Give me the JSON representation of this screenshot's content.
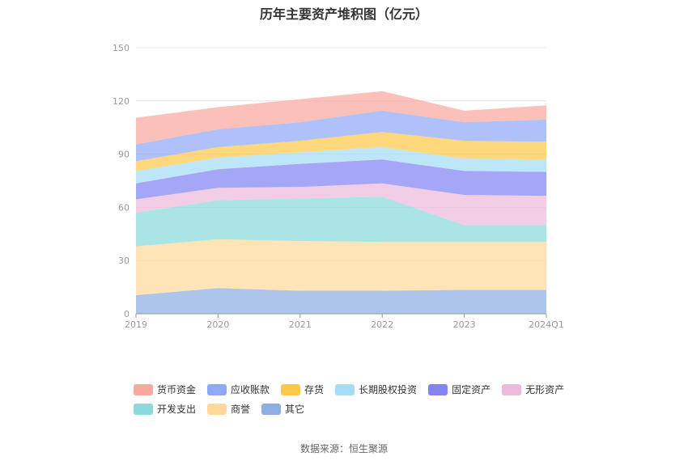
{
  "chart_data": {
    "type": "area",
    "stacked": true,
    "title": "历年主要资产堆积图（亿元）",
    "x": [
      "2019",
      "2020",
      "2021",
      "2022",
      "2023",
      "2024Q1"
    ],
    "ylim": [
      0,
      150
    ],
    "yticks": [
      0,
      30,
      60,
      90,
      120,
      150
    ],
    "grid": true,
    "legend_position": "bottom",
    "series": [
      {
        "name": "其它",
        "color": "#8eaee0",
        "values": [
          10.5,
          14.5,
          13,
          13,
          13.5,
          13.5
        ]
      },
      {
        "name": "商誉",
        "color": "#ffd99b",
        "values": [
          27.5,
          27.5,
          28,
          27.5,
          27,
          27
        ]
      },
      {
        "name": "开发支出",
        "color": "#8bd9d9",
        "values": [
          19,
          22,
          24,
          25.5,
          9.5,
          9.5
        ]
      },
      {
        "name": "无形资产",
        "color": "#ebbbdc",
        "values": [
          7.5,
          7,
          6.5,
          7.5,
          17,
          16.5
        ]
      },
      {
        "name": "固定资产",
        "color": "#8384f2",
        "values": [
          9,
          10.5,
          13,
          13.5,
          13.5,
          13.5
        ]
      },
      {
        "name": "长期股权投资",
        "color": "#a5dcf7",
        "values": [
          7,
          6.5,
          6.5,
          7,
          7,
          7
        ]
      },
      {
        "name": "存货",
        "color": "#ffc84a",
        "values": [
          5.5,
          6,
          6.5,
          8.5,
          10,
          10
        ]
      },
      {
        "name": "应收账款",
        "color": "#8fa9f7",
        "values": [
          9.5,
          10,
          10.5,
          12,
          10.5,
          12.5
        ]
      },
      {
        "name": "货币资金",
        "color": "#fba89f",
        "values": [
          15,
          12.5,
          13,
          11,
          6.5,
          8
        ]
      }
    ],
    "legend_order": [
      "货币资金",
      "应收账款",
      "存货",
      "长期股权投资",
      "固定资产",
      "无形资产",
      "开发支出",
      "商誉",
      "其它"
    ]
  },
  "source": "数据来源：恒生聚源"
}
